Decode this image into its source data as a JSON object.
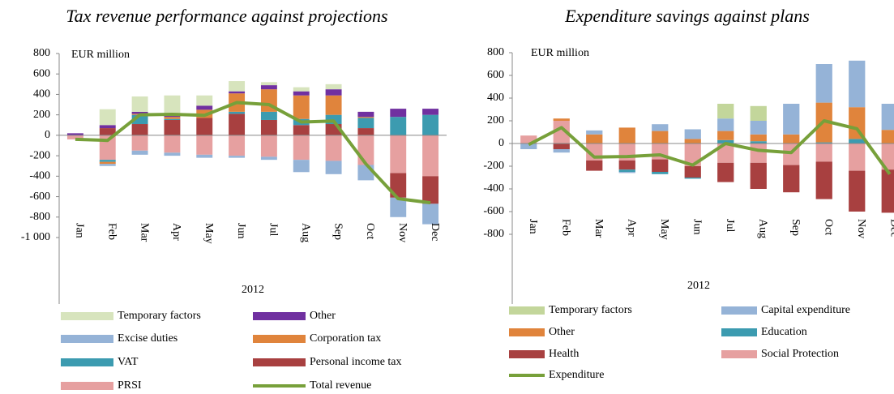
{
  "chart_data": [
    {
      "type": "bar",
      "stacked": true,
      "title": "Tax revenue performance against projections",
      "y_label": "EUR million",
      "x_group_label": "2012",
      "categories": [
        "Jan",
        "Feb",
        "Mar",
        "Apr",
        "May",
        "Jun",
        "Jul",
        "Aug",
        "Sep",
        "Oct",
        "Nov",
        "Dec"
      ],
      "ylim": [
        -1000,
        800
      ],
      "yticks": [
        {
          "value": -1000,
          "label": "-1 000"
        },
        -800,
        -600,
        -400,
        -200,
        0,
        200,
        400,
        600,
        800
      ],
      "series": [
        {
          "name": "Temporary factors",
          "color": "#d7e4bd",
          "values": [
            0,
            155,
            150,
            190,
            100,
            100,
            30,
            40,
            50,
            0,
            0,
            0
          ]
        },
        {
          "name": "Other",
          "color": "#7030a0",
          "values": [
            20,
            30,
            20,
            20,
            40,
            20,
            40,
            40,
            60,
            50,
            80,
            60
          ]
        },
        {
          "name": "Excise duties",
          "color": "#95b3d7",
          "values": [
            0,
            -20,
            -40,
            -30,
            -30,
            -20,
            -30,
            -120,
            -130,
            -150,
            -190,
            -200
          ]
        },
        {
          "name": "Corporation tax",
          "color": "#e0843c",
          "values": [
            0,
            -20,
            10,
            20,
            80,
            180,
            220,
            230,
            190,
            10,
            0,
            0
          ]
        },
        {
          "name": "VAT",
          "color": "#3c9bb0",
          "values": [
            0,
            -20,
            90,
            10,
            0,
            20,
            80,
            60,
            90,
            100,
            180,
            200
          ]
        },
        {
          "name": "Personal income tax",
          "color": "#a84040",
          "values": [
            0,
            70,
            110,
            150,
            170,
            210,
            150,
            100,
            110,
            70,
            -240,
            -270
          ]
        },
        {
          "name": "PRSI",
          "color": "#e6a0a0",
          "values": [
            -40,
            -240,
            -150,
            -170,
            -190,
            -200,
            -210,
            -240,
            -250,
            -290,
            -370,
            -400
          ]
        },
        {
          "name": "Total revenue",
          "color": "#77a03a",
          "type": "line",
          "values": [
            -40,
            -50,
            200,
            205,
            195,
            320,
            300,
            130,
            140,
            -280,
            -620,
            -660
          ]
        }
      ]
    },
    {
      "type": "bar",
      "stacked": true,
      "title": "Expenditure savings against plans",
      "y_label": "EUR million",
      "x_group_label": "2012",
      "categories": [
        "Jan",
        "Feb",
        "Mar",
        "Apr",
        "May",
        "Jun",
        "Jul",
        "Aug",
        "Sep",
        "Oct",
        "Nov",
        "Dec"
      ],
      "ylim": [
        -800,
        800
      ],
      "yticks": [
        -800,
        -600,
        -400,
        -200,
        0,
        200,
        400,
        600,
        800
      ],
      "series": [
        {
          "name": "Temporary factors",
          "color": "#c3d69b",
          "values": [
            0,
            0,
            0,
            0,
            0,
            0,
            130,
            130,
            0,
            0,
            0,
            0
          ]
        },
        {
          "name": "Capital expenditure",
          "color": "#95b3d7",
          "values": [
            -50,
            -30,
            35,
            -10,
            60,
            85,
            110,
            120,
            270,
            340,
            410,
            230
          ]
        },
        {
          "name": "Other",
          "color": "#e0843c",
          "values": [
            0,
            20,
            80,
            140,
            110,
            40,
            80,
            60,
            80,
            350,
            280,
            120
          ]
        },
        {
          "name": "Education",
          "color": "#3c9bb0",
          "values": [
            0,
            0,
            0,
            -20,
            -20,
            -10,
            30,
            20,
            0,
            10,
            40,
            0
          ]
        },
        {
          "name": "Health",
          "color": "#a84040",
          "values": [
            0,
            -50,
            -90,
            -80,
            -110,
            -100,
            -170,
            -230,
            -240,
            -330,
            -360,
            -380
          ]
        },
        {
          "name": "Social Protection",
          "color": "#e6a0a0",
          "values": [
            70,
            200,
            -150,
            -150,
            -140,
            -200,
            -170,
            -170,
            -190,
            -160,
            -240,
            -230
          ]
        },
        {
          "name": "Expenditure",
          "color": "#77a03a",
          "type": "line",
          "values": [
            -10,
            140,
            -120,
            -115,
            -100,
            -190,
            0,
            -60,
            -80,
            200,
            130,
            -270
          ]
        }
      ]
    }
  ]
}
